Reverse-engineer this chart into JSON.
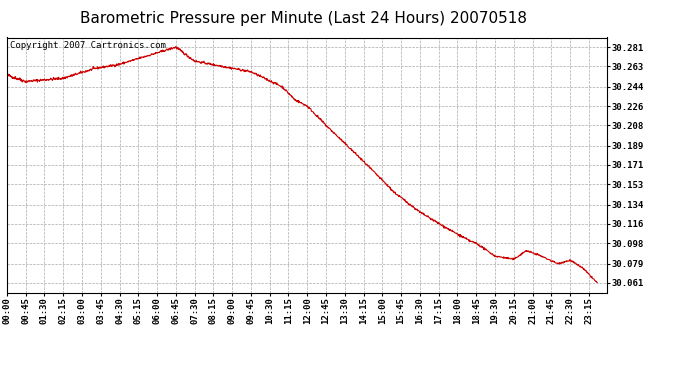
{
  "title": "Barometric Pressure per Minute (Last 24 Hours) 20070518",
  "copyright_text": "Copyright 2007 Cartronics.com",
  "line_color": "#cc0000",
  "background_color": "#ffffff",
  "plot_bg_color": "#ffffff",
  "grid_color": "#aaaaaa",
  "yticks": [
    30.061,
    30.079,
    30.098,
    30.116,
    30.134,
    30.153,
    30.171,
    30.189,
    30.208,
    30.226,
    30.244,
    30.263,
    30.281
  ],
  "xtick_labels": [
    "00:00",
    "00:45",
    "01:30",
    "02:15",
    "03:00",
    "03:45",
    "04:30",
    "05:15",
    "06:00",
    "06:45",
    "07:30",
    "08:15",
    "09:00",
    "09:45",
    "10:30",
    "11:15",
    "12:00",
    "12:45",
    "13:30",
    "14:15",
    "15:00",
    "15:45",
    "16:30",
    "17:15",
    "18:00",
    "18:45",
    "19:30",
    "20:15",
    "21:00",
    "21:45",
    "22:30",
    "23:15"
  ],
  "ymin": 30.052,
  "ymax": 30.29,
  "xmin": 0,
  "xmax": 1439,
  "title_fontsize": 11,
  "copyright_fontsize": 6.5,
  "tick_fontsize": 6.5
}
